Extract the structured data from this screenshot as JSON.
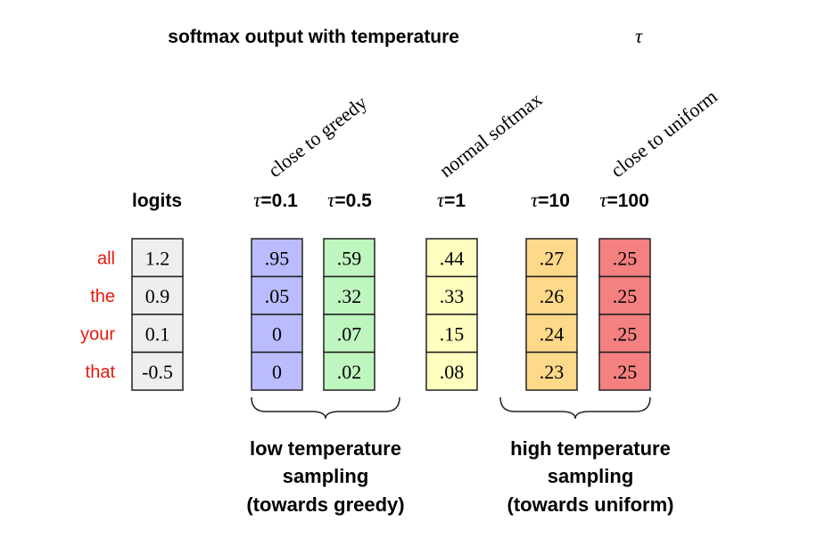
{
  "title": "softmax output with temperature",
  "tau": "τ",
  "annotations": [
    "close to greedy",
    "normal softmax",
    "close to uniform"
  ],
  "tokens": [
    "all",
    "the",
    "your",
    "that"
  ],
  "logits_header": "logits",
  "logits": [
    "1.2",
    "0.9",
    "0.1",
    "-0.5"
  ],
  "columns": [
    {
      "label": "=0.1",
      "values": [
        ".95",
        ".05",
        "0",
        "0"
      ],
      "color": "#bbbbff"
    },
    {
      "label": "=0.5",
      "values": [
        ".59",
        ".32",
        ".07",
        ".02"
      ],
      "color": "#bff5bf"
    },
    {
      "label": "=1",
      "values": [
        ".44",
        ".33",
        ".15",
        ".08"
      ],
      "color": "#ffffbf"
    },
    {
      "label": "=10",
      "values": [
        ".27",
        ".26",
        ".24",
        ".23"
      ],
      "color": "#ffd98a"
    },
    {
      "label": "=100",
      "values": [
        ".25",
        ".25",
        ".25",
        ".25"
      ],
      "color": "#f58080"
    }
  ],
  "colors": {
    "logits": "#eeeeee",
    "token": "#e8180c",
    "border": "#222222"
  },
  "groups": [
    {
      "lines": [
        "low temperature",
        "sampling",
        "(towards greedy)"
      ]
    },
    {
      "lines": [
        "high temperature",
        "sampling",
        "(towards uniform)"
      ]
    }
  ]
}
